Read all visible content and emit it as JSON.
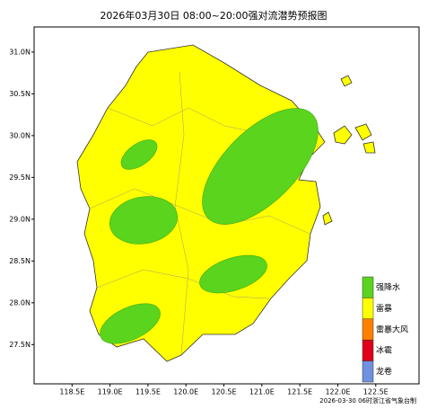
{
  "title": "2026年03月30日 08:00~20:00强对流潜势预报图",
  "map": {
    "xlim": [
      118.0,
      123.07
    ],
    "ylim": [
      27.03,
      31.3
    ],
    "xticks": [
      {
        "value": 118.5,
        "label": "118.5E"
      },
      {
        "value": 119.0,
        "label": "119.0E"
      },
      {
        "value": 119.5,
        "label": "119.5E"
      },
      {
        "value": 120.0,
        "label": "120.0E"
      },
      {
        "value": 120.5,
        "label": "120.5E"
      },
      {
        "value": 121.0,
        "label": "121.0E"
      },
      {
        "value": 121.5,
        "label": "121.5E"
      },
      {
        "value": 122.0,
        "label": "122.0E"
      },
      {
        "value": 122.5,
        "label": "122.5E"
      }
    ],
    "yticks": [
      {
        "value": 31.0,
        "label": "31.0N"
      },
      {
        "value": 30.5,
        "label": "30.5N"
      },
      {
        "value": 30.0,
        "label": "30.0N"
      },
      {
        "value": 29.5,
        "label": "29.5N"
      },
      {
        "value": 29.0,
        "label": "29.0N"
      },
      {
        "value": 28.5,
        "label": "28.5N"
      },
      {
        "value": 28.0,
        "label": "28.0N"
      },
      {
        "value": 27.5,
        "label": "27.5N"
      }
    ]
  },
  "legend": [
    {
      "label": "强降水",
      "color": "#5ad41c"
    },
    {
      "label": "雷暴",
      "color": "#ffff00"
    },
    {
      "label": "雷暴大风",
      "color": "#ff8000"
    },
    {
      "label": "冰雹",
      "color": "#e0001a"
    },
    {
      "label": "龙卷",
      "color": "#7090e0"
    }
  ],
  "footer": "2026-03-30 06时浙江省气象台制"
}
